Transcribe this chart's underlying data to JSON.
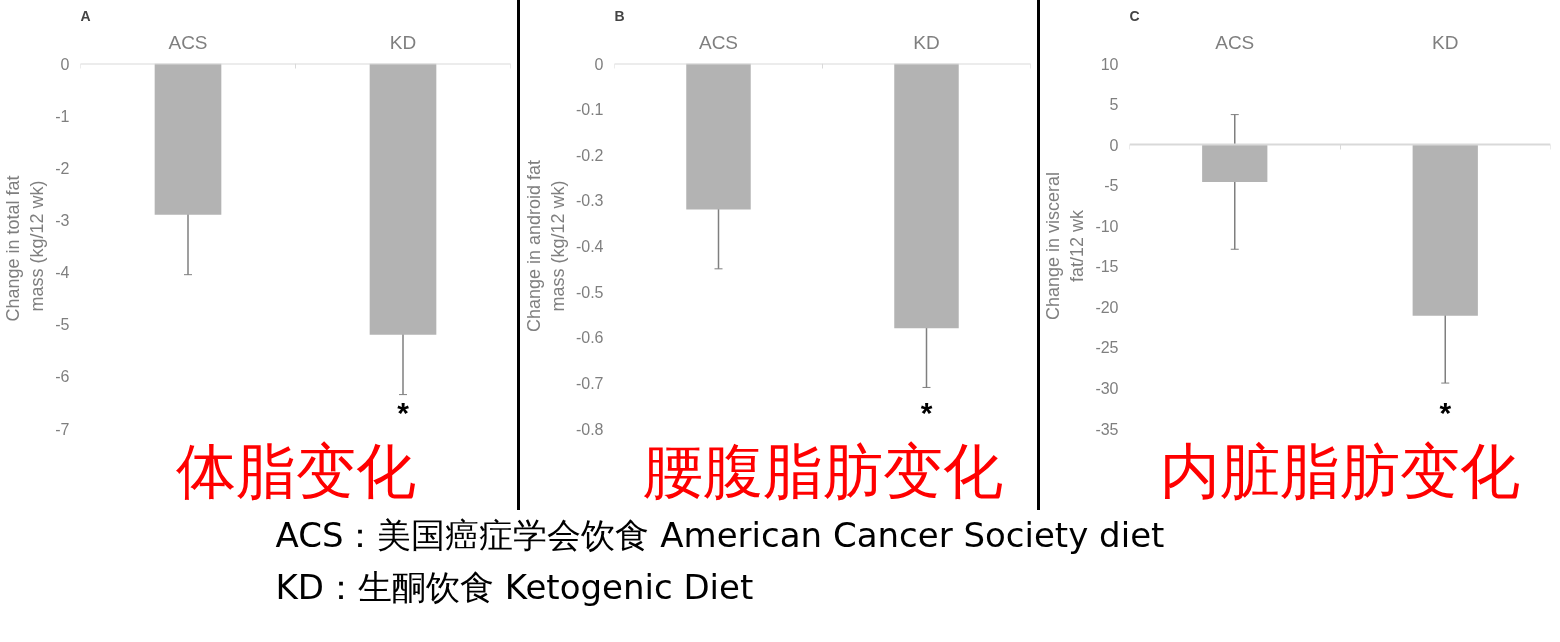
{
  "chart_data": [
    {
      "type": "bar",
      "title": "A",
      "subtitle": "体脂变化",
      "ylabel": "Change in total  fat mass (kg/12 wk)",
      "categories": [
        "ACS",
        "KD"
      ],
      "values": [
        -2.9,
        -5.2
      ],
      "errors": [
        1.15,
        1.15
      ],
      "color": "#b3b3b3",
      "ylim": [
        -7,
        0
      ],
      "yticks": [
        0,
        -1,
        -2,
        -3,
        -4,
        -5,
        -6,
        -7
      ],
      "annotations": [
        "*",
        "ACS：美国癌症学会饮食 American Cancer Society diet",
        "KD：生酮饮食 Ketogenic Diet"
      ]
    },
    {
      "type": "bar",
      "title": "B",
      "subtitle": "腰腹脂肪变化",
      "ylabel": "Change in android fat mass (kg/12 wk)",
      "categories": [
        "ACS",
        "KD"
      ],
      "values": [
        -0.32,
        -0.58
      ],
      "errors": [
        0.13,
        0.13
      ],
      "color": "#b3b3b3",
      "ylim": [
        -0.8,
        0
      ],
      "yticks": [
        0,
        -0.1,
        -0.2,
        -0.3,
        -0.4,
        -0.5,
        -0.6,
        -0.7,
        -0.8
      ],
      "annotations": [
        "*"
      ]
    },
    {
      "type": "bar",
      "title": "C",
      "subtitle": "内脏脂肪变化",
      "ylabel": "Change in visceral fat/12 wk",
      "categories": [
        "ACS",
        "KD"
      ],
      "values": [
        -4.6,
        -21.1
      ],
      "errors": [
        8.3,
        8.3
      ],
      "color": "#b3b3b3",
      "ylim": [
        -35,
        10
      ],
      "yticks": [
        10,
        5,
        0,
        -5,
        -10,
        -15,
        -20,
        -25,
        -30,
        -35
      ],
      "annotations": [
        "*"
      ]
    }
  ]
}
